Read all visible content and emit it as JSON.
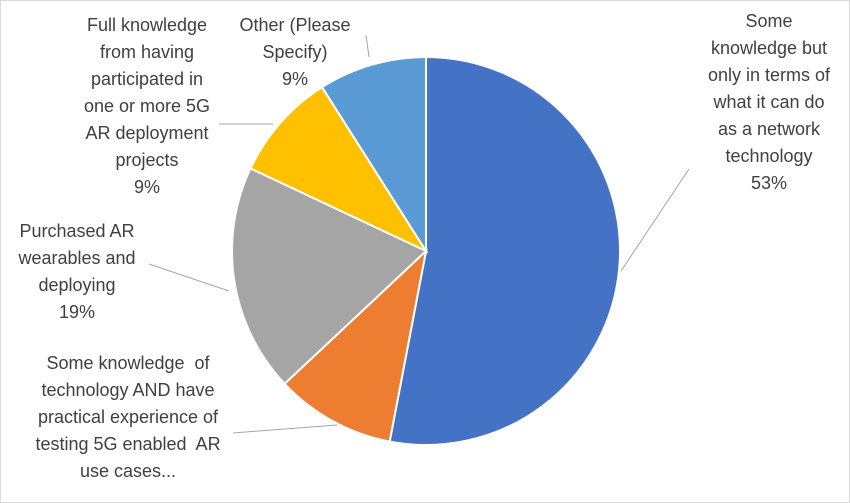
{
  "chart_data": {
    "type": "pie",
    "title": "",
    "start_angle_deg": 0,
    "direction": "clockwise",
    "legend": "none",
    "slices": [
      {
        "label_lines": [
          "Some",
          "knowledge but",
          "only in terms of",
          "what it can do",
          "as a network",
          "technology"
        ],
        "value": 53,
        "value_label": "53%",
        "color": "#4472C4"
      },
      {
        "label_lines": [
          "Some knowledge  of",
          "technology AND have",
          "practical experience of",
          "testing 5G enabled  AR",
          "use cases..."
        ],
        "value": 10,
        "value_label": "",
        "color": "#ED7D31"
      },
      {
        "label_lines": [
          "Purchased AR",
          "wearables and",
          "deploying"
        ],
        "value": 19,
        "value_label": "19%",
        "color": "#A5A5A5"
      },
      {
        "label_lines": [
          "Full knowledge",
          "from having",
          "participated in",
          "one or more 5G",
          "AR deployment",
          "projects"
        ],
        "value": 9,
        "value_label": "9%",
        "color": "#FFC000"
      },
      {
        "label_lines": [
          "Other (Please",
          "Specify)"
        ],
        "value": 9,
        "value_label": "9%",
        "color": "#5B9BD5"
      }
    ]
  }
}
